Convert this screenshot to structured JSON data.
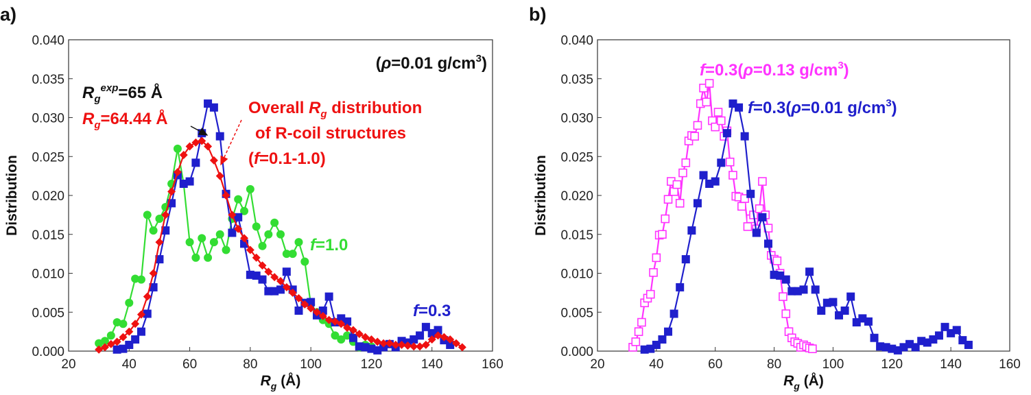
{
  "chart_data": [
    {
      "type": "line",
      "panel_label": "a)",
      "x_label": [
        "R",
        "g",
        " (Å)"
      ],
      "y_label": "Distribution",
      "xlim": [
        20,
        160
      ],
      "ylim": [
        0,
        0.04
      ],
      "xticks": [
        20,
        40,
        60,
        80,
        100,
        120,
        140,
        160
      ],
      "yticks": [
        {
          "value": 0,
          "label": "0.000"
        },
        {
          "value": 0.005,
          "label": "0.005"
        },
        {
          "value": 0.01,
          "label": "0.010"
        },
        {
          "value": 0.015,
          "label": "0.015"
        },
        {
          "value": 0.02,
          "label": "0.020"
        },
        {
          "value": 0.025,
          "label": "0.025"
        },
        {
          "value": 0.03,
          "label": "0.030"
        },
        {
          "value": 0.035,
          "label": "0.035"
        },
        {
          "value": 0.04,
          "label": "0.040"
        }
      ],
      "annotations": {
        "density": [
          "(",
          "ρ",
          "=0.01 g/cm",
          "3",
          ")"
        ],
        "rg_exp": [
          "R",
          "g",
          "exp",
          "=65 Å"
        ],
        "rg": [
          "R",
          "g",
          "=64.44 Å"
        ],
        "overall": [
          [
            "Overall ",
            "R",
            "g",
            " distribution"
          ],
          [
            "of R-coil structures"
          ],
          [
            "(",
            "f",
            "=0.1-1.0)"
          ]
        ],
        "f1": [
          "f",
          "=1.0"
        ],
        "f03": [
          "f",
          "=0.3"
        ]
      },
      "series": [
        {
          "color": "#33dd33",
          "marker": "circle",
          "x": [
            30,
            32,
            34,
            36,
            38,
            40,
            42,
            44,
            46,
            48,
            50,
            52,
            54,
            56,
            58,
            60,
            62,
            64,
            66,
            68,
            70,
            72,
            74,
            76,
            78,
            80,
            82,
            84,
            86,
            88,
            90,
            92,
            94,
            96,
            98,
            100,
            102,
            104,
            106,
            108,
            110,
            112,
            114,
            116,
            118,
            120
          ],
          "values": [
            0.001,
            0.0013,
            0.002,
            0.0037,
            0.0035,
            0.0062,
            0.0093,
            0.0092,
            0.0175,
            0.0155,
            0.017,
            0.0185,
            0.0215,
            0.026,
            0.0215,
            0.014,
            0.012,
            0.0145,
            0.012,
            0.014,
            0.015,
            0.013,
            0.017,
            0.0195,
            0.018,
            0.0208,
            0.016,
            0.0135,
            0.015,
            0.0165,
            0.015,
            0.0125,
            0.0125,
            0.014,
            0.0115,
            0.006,
            0.005,
            0.004,
            0.0035,
            0.002,
            0.0015,
            0.002,
            0.0012,
            0.0005,
            0.0008,
            0.0006
          ]
        },
        {
          "color": "#1f1fcc",
          "marker": "square",
          "x": [
            36,
            38,
            40,
            42,
            44,
            46,
            48,
            50,
            52,
            54,
            56,
            58,
            60,
            62,
            64,
            66,
            68,
            70,
            72,
            74,
            76,
            78,
            80,
            82,
            84,
            86,
            88,
            90,
            92,
            94,
            96,
            98,
            100,
            102,
            104,
            106,
            108,
            110,
            112,
            114,
            116,
            118,
            120,
            122,
            124,
            126,
            128,
            130,
            132,
            134,
            136,
            138,
            140,
            142,
            144,
            146
          ],
          "values": [
            0.0002,
            0.0003,
            0.0008,
            0.0015,
            0.0025,
            0.0048,
            0.0082,
            0.0118,
            0.0155,
            0.019,
            0.0226,
            0.0215,
            0.0218,
            0.0242,
            0.028,
            0.0318,
            0.0313,
            0.0276,
            0.0202,
            0.0152,
            0.0172,
            0.0138,
            0.0098,
            0.0097,
            0.0092,
            0.0077,
            0.0077,
            0.0079,
            0.0102,
            0.0079,
            0.0052,
            0.0062,
            0.0063,
            0.0046,
            0.0052,
            0.007,
            0.0037,
            0.0042,
            0.0038,
            0.0017,
            0.0006,
            0.0005,
            0.0003,
            0.0001,
            0.0005,
            0.0009,
            0.0005,
            0.0013,
            0.0011,
            0.0015,
            0.002,
            0.0031,
            0.0023,
            0.0027,
            0.0014,
            0.0008
          ]
        },
        {
          "color": "#ee1111",
          "marker": "diamond",
          "x": [
            30,
            32,
            34,
            36,
            38,
            40,
            42,
            44,
            46,
            48,
            50,
            52,
            54,
            56,
            58,
            60,
            62,
            64,
            66,
            68,
            70,
            72,
            74,
            76,
            78,
            80,
            82,
            84,
            86,
            88,
            90,
            92,
            94,
            96,
            98,
            100,
            102,
            104,
            106,
            108,
            110,
            112,
            114,
            116,
            118,
            120,
            122,
            124,
            126,
            128,
            130,
            132,
            134,
            136,
            138,
            140,
            142,
            144,
            146,
            148,
            150
          ],
          "values": [
            0.0002,
            0.0005,
            0.0009,
            0.0012,
            0.0018,
            0.0025,
            0.0035,
            0.0047,
            0.007,
            0.01,
            0.014,
            0.0175,
            0.0205,
            0.023,
            0.0252,
            0.0263,
            0.0268,
            0.027,
            0.0263,
            0.0245,
            0.0225,
            0.02,
            0.0175,
            0.0157,
            0.0145,
            0.013,
            0.012,
            0.011,
            0.0102,
            0.0095,
            0.009,
            0.0082,
            0.0075,
            0.0068,
            0.006,
            0.0055,
            0.005,
            0.0045,
            0.004,
            0.0038,
            0.0035,
            0.003,
            0.0027,
            0.0022,
            0.0018,
            0.0015,
            0.0012,
            0.001,
            0.001,
            0.0008,
            0.0008,
            0.0007,
            0.0006,
            0.0006,
            0.0008,
            0.0015,
            0.002,
            0.0018,
            0.0015,
            0.001,
            0.0005
          ]
        }
      ]
    },
    {
      "type": "line",
      "panel_label": "b)",
      "x_label": [
        "R",
        "g",
        " (Å)"
      ],
      "y_label": "Distribution",
      "xlim": [
        20,
        160
      ],
      "ylim": [
        0,
        0.04
      ],
      "xticks": [
        20,
        40,
        60,
        80,
        100,
        120,
        140,
        160
      ],
      "yticks": [
        {
          "value": 0,
          "label": "0.000"
        },
        {
          "value": 0.005,
          "label": "0.005"
        },
        {
          "value": 0.01,
          "label": "0.010"
        },
        {
          "value": 0.015,
          "label": "0.015"
        },
        {
          "value": 0.02,
          "label": "0.020"
        },
        {
          "value": 0.025,
          "label": "0.025"
        },
        {
          "value": 0.03,
          "label": "0.030"
        },
        {
          "value": 0.035,
          "label": "0.035"
        },
        {
          "value": 0.04,
          "label": "0.040"
        }
      ],
      "annotations": {
        "magenta": [
          "f",
          "=0.3(",
          "ρ",
          "=0.13 g/cm",
          "3",
          ")"
        ],
        "blue": [
          "f",
          "=0.3(",
          "ρ",
          "=0.01 g/cm",
          "3",
          ")"
        ]
      },
      "series": [
        {
          "color": "#ff33ff",
          "marker": "open-square",
          "x": [
            32,
            33,
            34,
            35,
            36,
            37,
            38,
            39,
            40,
            41,
            42,
            43,
            44,
            45,
            46,
            47,
            48,
            49,
            50,
            51,
            52,
            53,
            54,
            55,
            56,
            57,
            58,
            59,
            60,
            61,
            62,
            63,
            64,
            65,
            66,
            67,
            68,
            69,
            70,
            71,
            72,
            73,
            74,
            75,
            76,
            77,
            78,
            79,
            80,
            81,
            82,
            83,
            84,
            85,
            86,
            87,
            88,
            89,
            90,
            91,
            92,
            93
          ],
          "values": [
            0.0005,
            0.0012,
            0.0025,
            0.0037,
            0.0062,
            0.0068,
            0.0073,
            0.0101,
            0.012,
            0.0149,
            0.015,
            0.017,
            0.0195,
            0.0218,
            0.0205,
            0.0214,
            0.019,
            0.0229,
            0.0242,
            0.027,
            0.0277,
            0.0276,
            0.029,
            0.0318,
            0.0338,
            0.032,
            0.0344,
            0.0296,
            0.0288,
            0.0307,
            0.0296,
            0.0276,
            0.0283,
            0.0243,
            0.0226,
            0.0199,
            0.0198,
            0.0186,
            0.0196,
            0.016,
            0.017,
            0.0175,
            0.0157,
            0.0183,
            0.0218,
            0.0175,
            0.0158,
            0.0123,
            0.0118,
            0.0116,
            0.01,
            0.007,
            0.0048,
            0.0025,
            0.0017,
            0.0012,
            0.001,
            0.0005,
            0.0008,
            0.0006,
            0.0004,
            0.0003
          ]
        },
        {
          "color": "#1f1fcc",
          "marker": "square",
          "x": [
            36,
            38,
            40,
            42,
            44,
            46,
            48,
            50,
            52,
            54,
            56,
            58,
            60,
            62,
            64,
            66,
            68,
            70,
            72,
            74,
            76,
            78,
            80,
            82,
            84,
            86,
            88,
            90,
            92,
            94,
            96,
            98,
            100,
            102,
            104,
            106,
            108,
            110,
            112,
            114,
            116,
            118,
            120,
            122,
            124,
            126,
            128,
            130,
            132,
            134,
            136,
            138,
            140,
            142,
            144,
            146
          ],
          "values": [
            0.0002,
            0.0003,
            0.0008,
            0.0015,
            0.0025,
            0.0048,
            0.0082,
            0.0118,
            0.0155,
            0.019,
            0.0226,
            0.0215,
            0.0218,
            0.0242,
            0.028,
            0.0318,
            0.0313,
            0.0276,
            0.0202,
            0.0152,
            0.0172,
            0.0138,
            0.0098,
            0.0097,
            0.0092,
            0.0077,
            0.0077,
            0.0079,
            0.0102,
            0.0079,
            0.0052,
            0.0062,
            0.0063,
            0.0046,
            0.0052,
            0.007,
            0.0037,
            0.0042,
            0.0038,
            0.0017,
            0.0006,
            0.0005,
            0.0003,
            0.0001,
            0.0005,
            0.0009,
            0.0005,
            0.0013,
            0.0011,
            0.0015,
            0.002,
            0.0031,
            0.0023,
            0.0027,
            0.0014,
            0.0008
          ]
        }
      ]
    }
  ]
}
